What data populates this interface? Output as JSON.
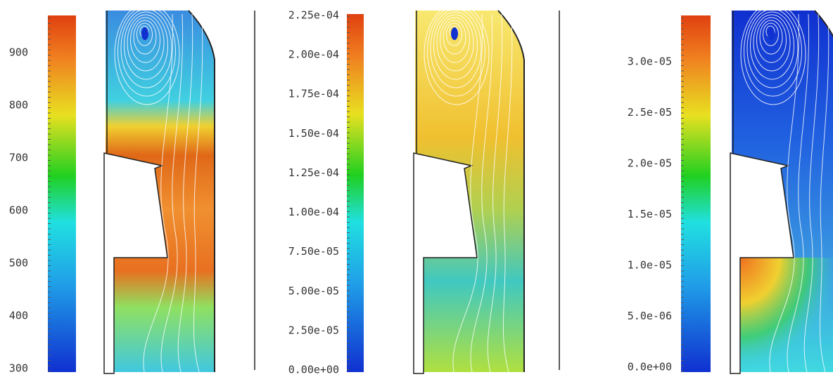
{
  "panels": [
    {
      "colorbar": {
        "ticks": [
          "900",
          "800",
          "700",
          "600",
          "500",
          "400",
          "300"
        ]
      }
    },
    {
      "colorbar": {
        "ticks": [
          "2.25e-04",
          "2.00e-04",
          "1.75e-04",
          "1.50e-04",
          "1.25e-04",
          "1.00e-04",
          "7.50e-05",
          "5.00e-05",
          "2.50e-05",
          "0.00e+00"
        ]
      }
    },
    {
      "colorbar": {
        "ticks": [
          "3.0e-05",
          "2.5e-05",
          "2.0e-05",
          "1.5e-05",
          "1.0e-05",
          "5.0e-06",
          "0.0e+00"
        ]
      }
    }
  ]
}
